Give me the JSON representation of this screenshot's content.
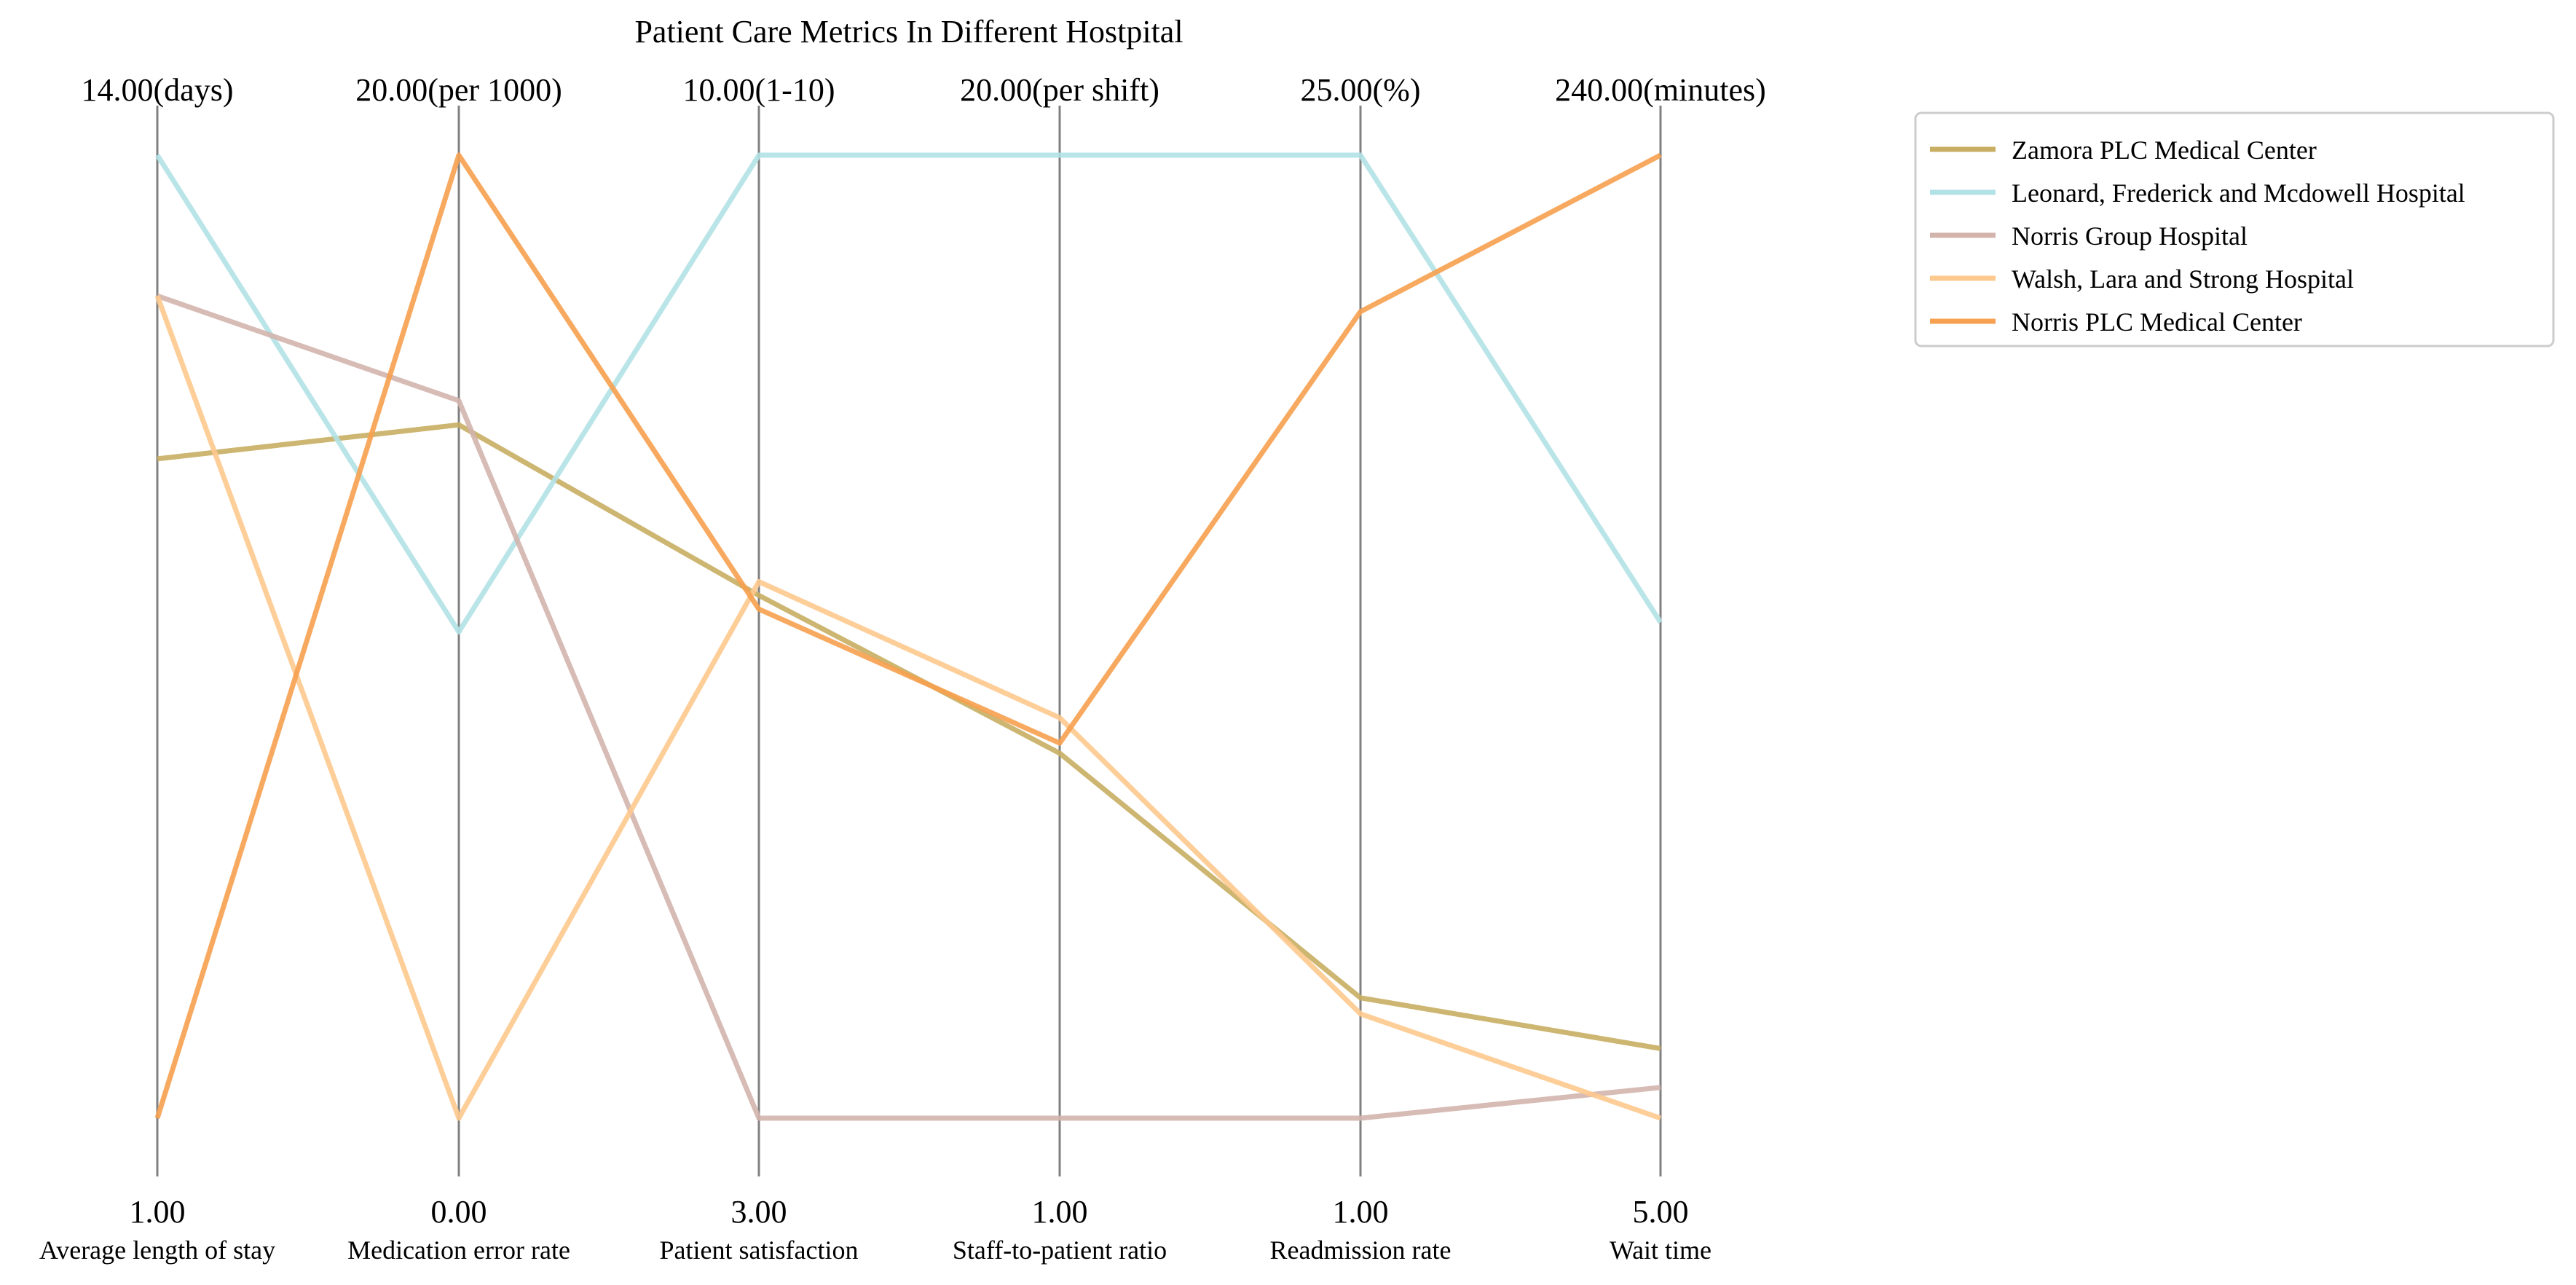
{
  "chart_data": {
    "type": "parallel-coordinates",
    "title": "Patient Care Metrics In Different Hostpital",
    "axes": [
      {
        "name": "Average length of stay",
        "min_label": "1.00",
        "max_label": "14.00(days)",
        "min": 1,
        "max": 14
      },
      {
        "name": "Medication error rate",
        "min_label": "0.00",
        "max_label": "20.00(per 1000)",
        "min": 0,
        "max": 20
      },
      {
        "name": "Patient satisfaction",
        "min_label": "3.00",
        "max_label": "10.00(1-10)",
        "min": 3,
        "max": 10
      },
      {
        "name": "Staff-to-patient ratio",
        "min_label": "1.00",
        "max_label": "20.00(per shift)",
        "min": 1,
        "max": 20
      },
      {
        "name": "Readmission rate",
        "min_label": "1.00",
        "max_label": "25.00(%)",
        "min": 1,
        "max": 25
      },
      {
        "name": "Wait time",
        "min_label": "5.00",
        "max_label": "240.00(minutes)",
        "min": 5,
        "max": 240
      }
    ],
    "series": [
      {
        "name": "Zamora PLC  Medical Center",
        "color": "#c8ae62",
        "values": [
          9.9,
          14.4,
          6.8,
          8.2,
          4.0,
          22.0
        ]
      },
      {
        "name": "Leonard, Frederick and Mcdowell  Hospital",
        "color": "#b3e2e6",
        "values": [
          14.0,
          10.1,
          10.0,
          20.0,
          25.0,
          126.0
        ]
      },
      {
        "name": "Norris Group  Hospital",
        "color": "#d3b4ad",
        "values": [
          12.1,
          14.9,
          3.0,
          1.0,
          1.0,
          12.5
        ]
      },
      {
        "name": "Walsh, Lara and Strong  Hospital",
        "color": "#fec98e",
        "values": [
          12.1,
          0.0,
          6.9,
          8.9,
          3.6,
          5.0
        ]
      },
      {
        "name": "Norris PLC  Medical Center",
        "color": "#f7a04f",
        "values": [
          1.0,
          20.0,
          6.7,
          8.4,
          21.1,
          240.0
        ]
      }
    ],
    "legend_position": "top-right",
    "grid": false
  }
}
